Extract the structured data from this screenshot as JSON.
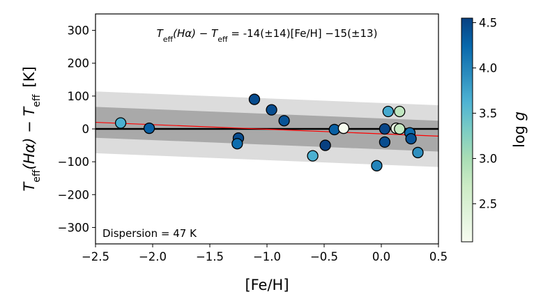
{
  "chart_data": {
    "type": "scatter",
    "title": "",
    "xlabel": "[Fe/H]",
    "ylabel_parts": {
      "T": "T",
      "eff": "eff",
      "halpha": "(Hα)",
      "minus": " − ",
      "unit": "[K]"
    },
    "xlim": [
      -2.5,
      0.5
    ],
    "ylim": [
      -350,
      350
    ],
    "xticks": [
      -2.5,
      -2.0,
      -1.5,
      -1.0,
      -0.5,
      0.0,
      0.5
    ],
    "xtick_labels": [
      "−2.5",
      "−2.0",
      "−1.5",
      "−1.0",
      "−0.5",
      "0.0",
      "0.5"
    ],
    "yticks": [
      -300,
      -200,
      -100,
      0,
      100,
      200,
      300
    ],
    "ytick_labels": [
      "−300",
      "−200",
      "−100",
      "0",
      "100",
      "200",
      "300"
    ],
    "grid": false,
    "fit": {
      "slope": -14,
      "intercept": -15,
      "label_parts": {
        "T": "T",
        "eff": "eff",
        "halpha": "(Hα)",
        "minus": " − ",
        "rhs": " = -14(±14)[Fe/H] −15(±13)"
      },
      "color": "#ff0000"
    },
    "zero_line_color": "#000000",
    "bands": [
      {
        "name": "2-sigma",
        "halfwidth": 94,
        "color": "#dcdcdc"
      },
      {
        "name": "1-sigma",
        "halfwidth": 47,
        "color": "#a9a9a9"
      }
    ],
    "dispersion_text": "Dispersion = 47 K",
    "colorbar": {
      "label": "log g",
      "label_parts": {
        "log": "log ",
        "g": "g"
      },
      "range": [
        2.08,
        4.55
      ],
      "ticks": [
        2.5,
        3.0,
        3.5,
        4.0,
        4.5
      ],
      "tick_labels": [
        "2.5",
        "3.0",
        "3.5",
        "4.0",
        "4.5"
      ],
      "colormap": "GnBu",
      "stops": [
        "#f7fcf0",
        "#e0f3db",
        "#ccebc5",
        "#a8ddb5",
        "#7bccc4",
        "#4eb3d3",
        "#2b8cbe",
        "#0868ac",
        "#084081"
      ]
    },
    "points": [
      {
        "x": -2.28,
        "y": 18,
        "logg": 3.65
      },
      {
        "x": -2.03,
        "y": 2,
        "logg": 4.3
      },
      {
        "x": -1.25,
        "y": -28,
        "logg": 4.45
      },
      {
        "x": -1.26,
        "y": -45,
        "logg": 4.2
      },
      {
        "x": -1.11,
        "y": 90,
        "logg": 4.45
      },
      {
        "x": -0.96,
        "y": 58,
        "logg": 4.45
      },
      {
        "x": -0.85,
        "y": 25,
        "logg": 4.4
      },
      {
        "x": -0.6,
        "y": -82,
        "logg": 3.65
      },
      {
        "x": -0.49,
        "y": -50,
        "logg": 4.55
      },
      {
        "x": -0.41,
        "y": -2,
        "logg": 4.3
      },
      {
        "x": -0.33,
        "y": 2,
        "logg": 2.1
      },
      {
        "x": -0.04,
        "y": -112,
        "logg": 4.0
      },
      {
        "x": 0.03,
        "y": 0,
        "logg": 4.5
      },
      {
        "x": 0.03,
        "y": -40,
        "logg": 4.45
      },
      {
        "x": 0.06,
        "y": 53,
        "logg": 3.7
      },
      {
        "x": 0.13,
        "y": 2,
        "logg": 2.3
      },
      {
        "x": 0.16,
        "y": 53,
        "logg": 2.8
      },
      {
        "x": 0.16,
        "y": 0,
        "logg": 2.75
      },
      {
        "x": 0.25,
        "y": -12,
        "logg": 4.2
      },
      {
        "x": 0.26,
        "y": -30,
        "logg": 4.4
      },
      {
        "x": 0.32,
        "y": -72,
        "logg": 3.9
      }
    ]
  }
}
